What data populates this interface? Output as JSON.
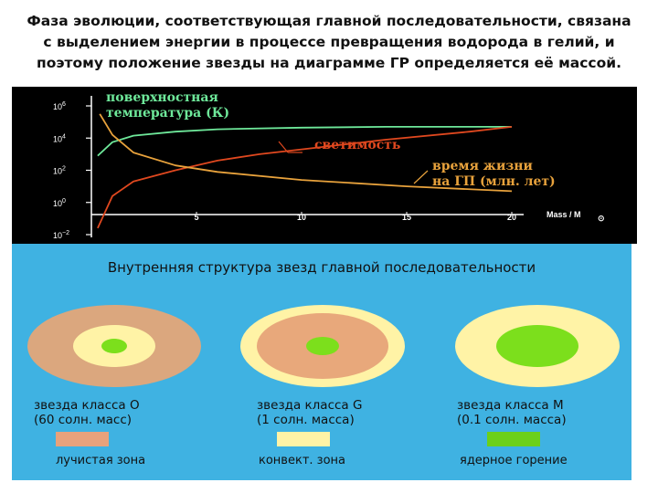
{
  "heading": [
    "Фаза эволюции, соответствующая главной последовательности, связана",
    "с выделением энергии в процессе превращения водорода в гелий, и",
    "поэтому положение звезды на диаграмме ГР определяется её массой."
  ],
  "chart_data": {
    "type": "line",
    "x_axis": {
      "label": "Mass / M",
      "ticks": [
        "5",
        "10",
        "15",
        "20"
      ],
      "range": [
        0,
        20
      ]
    },
    "y_axis": {
      "ticks": [
        "10^6",
        "10^4",
        "10^2",
        "10^0",
        "10^-2"
      ],
      "log_range": [
        -2,
        6
      ]
    },
    "grid": false,
    "series": [
      {
        "name": "поверхностная температура (К)",
        "color": "#6ee89a",
        "x": [
          0.3,
          1,
          2,
          4,
          6,
          10,
          14,
          20
        ],
        "log_y": [
          2.9,
          3.75,
          4.15,
          4.4,
          4.55,
          4.65,
          4.7,
          4.7
        ]
      },
      {
        "name": "светимость",
        "color": "#e0481f",
        "x": [
          0.3,
          1,
          2,
          4,
          6,
          8,
          10,
          14,
          18,
          20
        ],
        "log_y": [
          -1.6,
          0.4,
          1.3,
          2.0,
          2.6,
          3.0,
          3.3,
          3.9,
          4.4,
          4.7
        ]
      },
      {
        "name": "время жизни на ГП (млн. лет)",
        "color": "#e8a23c",
        "x": [
          0.4,
          1,
          2,
          4,
          6,
          10,
          15,
          20
        ],
        "log_y": [
          5.5,
          4.2,
          3.1,
          2.3,
          1.9,
          1.4,
          1.0,
          0.7
        ]
      }
    ]
  },
  "structure": {
    "title": "Внутренняя структура звезд главной последовательности",
    "bg": "#3fb2e2",
    "stars": [
      {
        "class_label": "звезда класса О",
        "mass_label": "(60 солн. масс)",
        "layers": [
          "#dba77e",
          "#fff3a6",
          "#7cdf1c"
        ]
      },
      {
        "class_label": "звезда класса G",
        "mass_label": "(1 солн. масса)",
        "layers": [
          "#fff3a6",
          "#e8a87b",
          "#7cdf1c"
        ]
      },
      {
        "class_label": "звезда класса М",
        "mass_label": "(0.1 солн. масса)",
        "layers": [
          "#fff3a6",
          "#7cdf1c"
        ]
      }
    ],
    "legend": [
      {
        "label": "лучистая зона",
        "color": "#e8a27c"
      },
      {
        "label": "конвект. зона",
        "color": "#fff3a6"
      },
      {
        "label": "ядерное горение",
        "color": "#6cd01a"
      }
    ]
  }
}
